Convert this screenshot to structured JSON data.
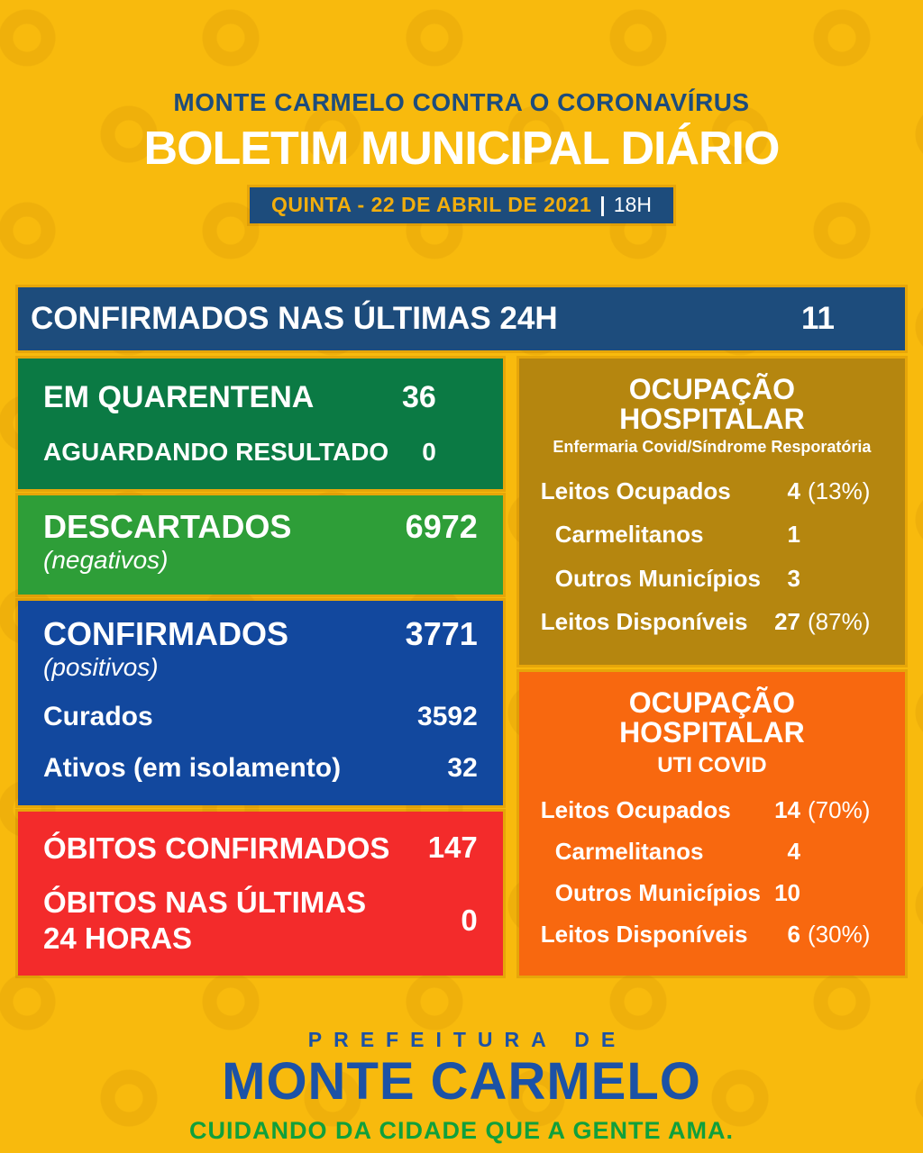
{
  "colors": {
    "background": "#F8BA0D",
    "navy": "#1D4C7C",
    "dark_green": "#0B7A44",
    "green": "#2E9E38",
    "blue": "#12489E",
    "red": "#F32B2B",
    "olive": "#B5860F",
    "orange": "#F8680F",
    "footer_blue": "#1C52A6",
    "footer_green": "#10A03C",
    "gold_text": "#F2AE0D"
  },
  "header": {
    "supertitle": "MONTE CARMELO CONTRA O CORONAVÍRUS",
    "title": "BOLETIM MUNICIPAL DIÁRIO",
    "date_label": "QUINTA - 22 DE ABRIL DE 2021",
    "date_separator": "|",
    "date_time": "18H"
  },
  "summary_bar": {
    "label": "CONFIRMADOS NAS ÚLTIMAS 24H",
    "value": "11"
  },
  "left": {
    "quarantine": {
      "rows": [
        {
          "label": "EM QUARENTENA",
          "value": "36"
        },
        {
          "label": "AGUARDANDO RESULTADO",
          "value": "0"
        }
      ]
    },
    "discarded": {
      "title": "DESCARTADOS",
      "subtitle": "(negativos)",
      "value": "6972"
    },
    "confirmed": {
      "title": "CONFIRMADOS",
      "subtitle": "(positivos)",
      "value": "3771",
      "rows": [
        {
          "label": "Curados",
          "value": "3592"
        },
        {
          "label": "Ativos (em isolamento)",
          "value": "32"
        }
      ]
    },
    "deaths": {
      "rows": [
        {
          "label": "ÓBITOS CONFIRMADOS",
          "value": "147"
        },
        {
          "label": "ÓBITOS NAS ÚLTIMAS 24 HORAS",
          "value": "0"
        }
      ]
    }
  },
  "right": {
    "ward": {
      "title": "OCUPAÇÃO HOSPITALAR",
      "subtitle": "Enfermaria Covid/Síndrome Resporatória",
      "rows": [
        {
          "label": "Leitos Ocupados",
          "num": "4",
          "pct": "(13%)"
        },
        {
          "label": "Carmelitanos",
          "num": "1",
          "pct": ""
        },
        {
          "label": "Outros Municípios",
          "num": "3",
          "pct": ""
        },
        {
          "label": "Leitos Disponíveis",
          "num": "27",
          "pct": "(87%)"
        }
      ]
    },
    "icu": {
      "title": "OCUPAÇÃO HOSPITALAR",
      "subtitle": "UTI COVID",
      "rows": [
        {
          "label": "Leitos Ocupados",
          "num": "14",
          "pct": "(70%)"
        },
        {
          "label": "Carmelitanos",
          "num": "4",
          "pct": ""
        },
        {
          "label": "Outros Municípios",
          "num": "10",
          "pct": ""
        },
        {
          "label": "Leitos Disponíveis",
          "num": "6",
          "pct": "(30%)"
        }
      ]
    }
  },
  "footer": {
    "line1": "PREFEITURA DE",
    "line2": "MONTE CARMELO",
    "line3": "CUIDANDO DA CIDADE QUE A GENTE AMA."
  }
}
